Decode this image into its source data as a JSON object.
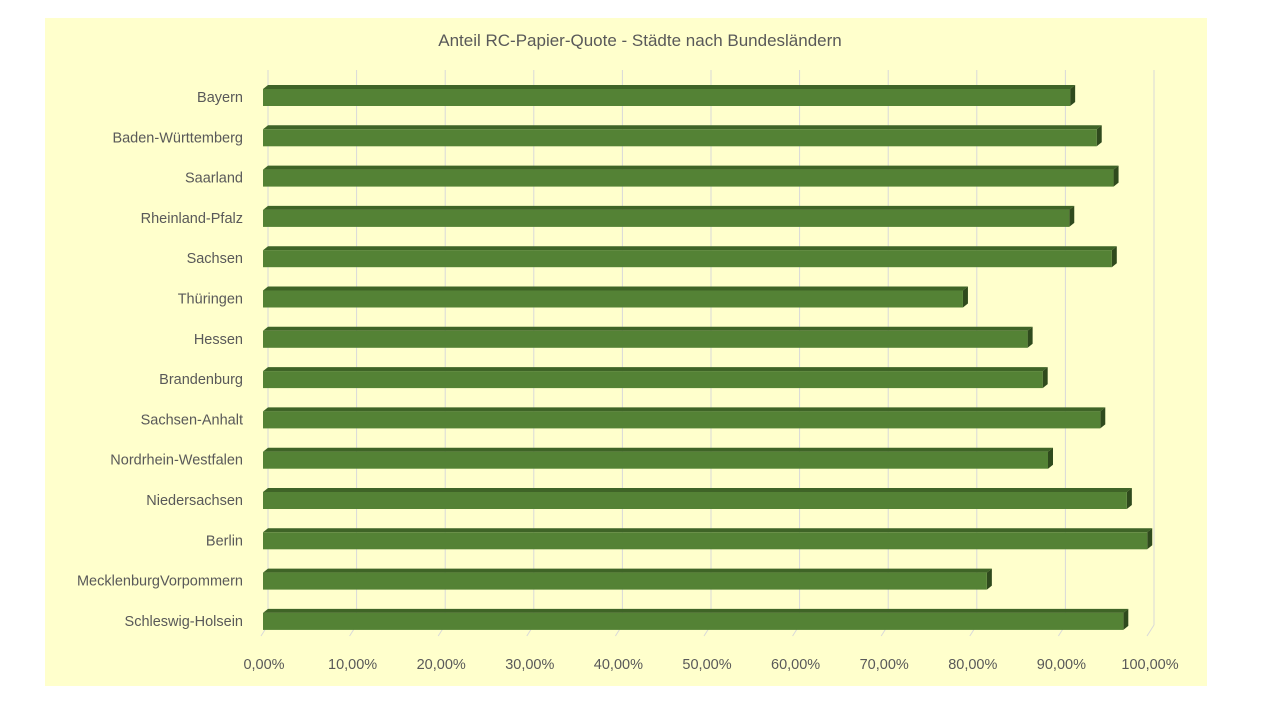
{
  "chart_data": {
    "type": "bar",
    "orientation": "horizontal",
    "style": "3d",
    "title": "Anteil RC-Papier-Quote - Städte nach Bundesländern",
    "xlabel": "",
    "ylabel": "",
    "xlim": [
      0,
      100
    ],
    "grid": true,
    "legend": "none",
    "bar_color": "#548235",
    "background_color": "#FFFFCC",
    "categories": [
      "Bayern",
      "Baden-Württemberg",
      "Saarland",
      "Rheinland-Pfalz",
      "Sachsen",
      "Thüringen",
      "Hessen",
      "Brandenburg",
      "Sachsen-Anhalt",
      "Nordrhein-Westfalen",
      "Niedersachsen",
      "Berlin",
      "MecklenburgVorpommern",
      "Schleswig-Holsein"
    ],
    "values": [
      91.1,
      94.1,
      96.0,
      91.0,
      95.8,
      79.0,
      86.3,
      88.0,
      94.5,
      88.6,
      97.5,
      99.8,
      81.7,
      97.1
    ],
    "tick_labels": [
      "0,00%",
      "10,00%",
      "20,00%",
      "30,00%",
      "40,00%",
      "50,00%",
      "60,00%",
      "70,00%",
      "80,00%",
      "90,00%",
      "100,00%"
    ]
  }
}
